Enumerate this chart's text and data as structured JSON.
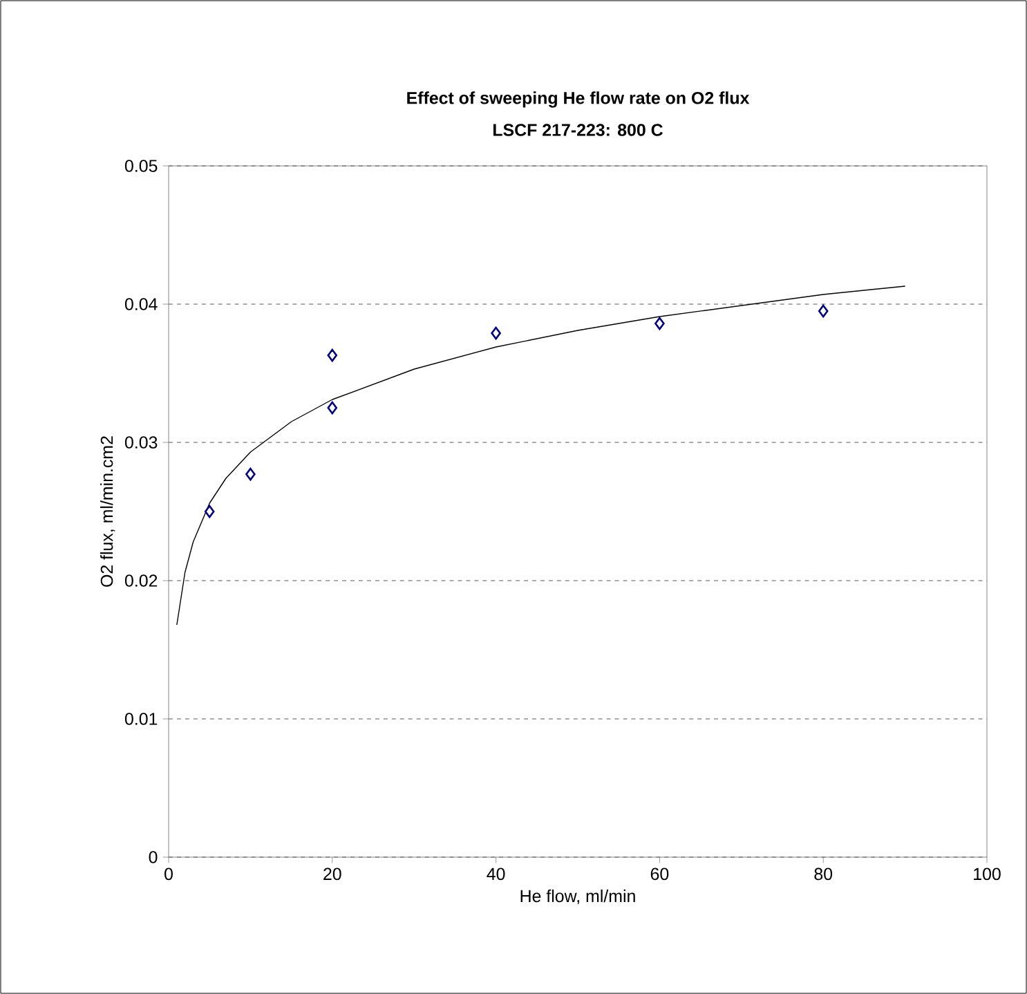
{
  "chart_data": {
    "type": "scatter",
    "title": "Effect of sweeping He flow rate on O2 flux",
    "subtitle": "LSCF 217-223: 800 C",
    "xlabel": "He flow, ml/min",
    "ylabel": "O2 flux, ml/min.cm2",
    "xlim": [
      0,
      100
    ],
    "ylim": [
      0,
      0.05
    ],
    "xticks": [
      0,
      20,
      40,
      60,
      80,
      100
    ],
    "yticks": [
      0,
      0.01,
      0.02,
      0.03,
      0.04,
      0.05
    ],
    "grid": "y",
    "series": [
      {
        "color": "#000080",
        "marker": "diamond",
        "x": [
          5,
          10,
          20,
          20,
          40,
          60,
          80
        ],
        "values": [
          0.025,
          0.0277,
          0.0363,
          0.0325,
          0.0379,
          0.0386,
          0.0395
        ]
      },
      {
        "type": "line",
        "color": "#000000",
        "marker": "none",
        "x": [
          1,
          2,
          3,
          5,
          7,
          10,
          15,
          20,
          30,
          40,
          50,
          60,
          70,
          80,
          90
        ],
        "values": [
          0.0168,
          0.0206,
          0.0228,
          0.0256,
          0.0274,
          0.0293,
          0.0315,
          0.0331,
          0.0353,
          0.0369,
          0.0381,
          0.0391,
          0.0399,
          0.0407,
          0.0413
        ]
      }
    ]
  }
}
